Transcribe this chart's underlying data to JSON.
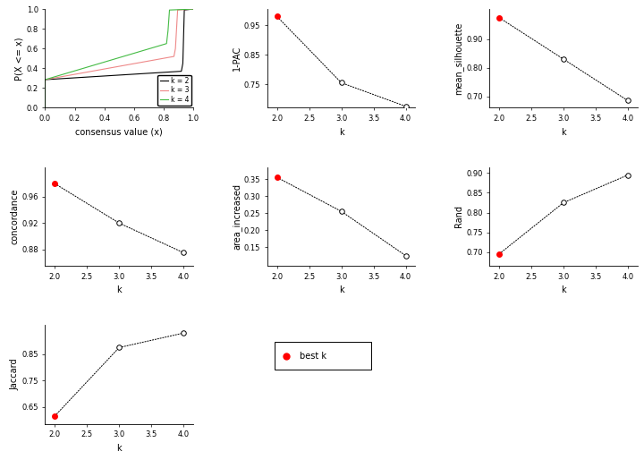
{
  "k_values": [
    2,
    3,
    4
  ],
  "one_pac": [
    0.98,
    0.755,
    0.675
  ],
  "mean_silhouette": [
    0.975,
    0.83,
    0.685
  ],
  "concordance": [
    0.98,
    0.92,
    0.875
  ],
  "area_increased": [
    0.355,
    0.255,
    0.125
  ],
  "rand": [
    0.695,
    0.825,
    0.895
  ],
  "jaccard": [
    0.615,
    0.875,
    0.93
  ],
  "best_k_pac": 2,
  "best_k_sil": 2,
  "best_k_conc": 2,
  "best_k_area": 2,
  "best_k_rand": 2,
  "best_k_jacc": 2,
  "line_color": "#000000",
  "best_color": "#ff0000",
  "open_color": "#ffffff",
  "bg_color": "#ffffff",
  "ecdf_k2_color": "#000000",
  "ecdf_k3_color": "#ee8888",
  "ecdf_k4_color": "#44bb44"
}
